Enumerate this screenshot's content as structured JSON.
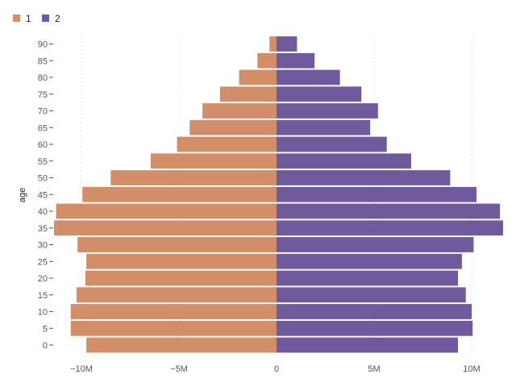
{
  "chart_data": {
    "type": "bar",
    "orientation": "horizontal",
    "ylabel": "age",
    "xlabel": "",
    "categories": [
      "0",
      "5",
      "10",
      "15",
      "20",
      "25",
      "30",
      "35",
      "40",
      "45",
      "50",
      "55",
      "60",
      "65",
      "70",
      "75",
      "80",
      "85",
      "90"
    ],
    "x_ticks": [
      -10000000,
      -5000000,
      0,
      5000000,
      10000000
    ],
    "x_tick_labels": [
      "−10M",
      "−5M",
      "0",
      "5M",
      "10M"
    ],
    "xlim": [
      -12000000,
      12000000
    ],
    "grid": true,
    "legend_position": "top-left",
    "series": [
      {
        "name": "1",
        "color": "#D28E68",
        "values": [
          -9750000,
          -10550000,
          -10550000,
          -10250000,
          -9800000,
          -9750000,
          -10200000,
          -11500000,
          -11300000,
          -9950000,
          -8500000,
          -6450000,
          -5100000,
          -4450000,
          -3800000,
          -2900000,
          -1920000,
          -980000,
          -360000
        ]
      },
      {
        "name": "2",
        "color": "#705A9E",
        "values": [
          9300000,
          10050000,
          10000000,
          9700000,
          9300000,
          9500000,
          10100000,
          11650000,
          11450000,
          10250000,
          8900000,
          6900000,
          5650000,
          4800000,
          5200000,
          4350000,
          3250000,
          1950000,
          1050000
        ]
      }
    ]
  }
}
